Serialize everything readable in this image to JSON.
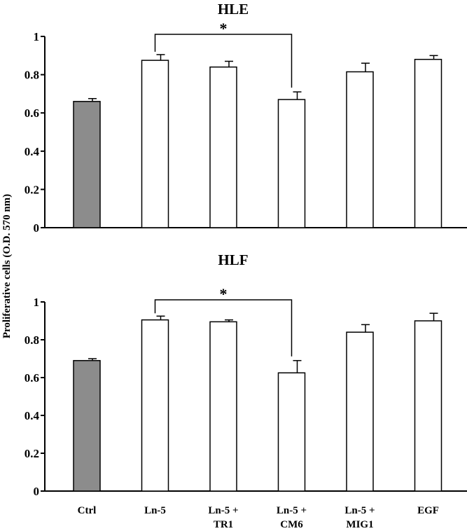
{
  "chart_data": [
    {
      "type": "bar",
      "title": "HLE",
      "ylabel": "Proliferative cells (O.D. 570 nm)",
      "ylim": [
        0,
        1
      ],
      "yticks": [
        "0",
        "0.2",
        "0.4",
        "0.6",
        "0.8",
        "1"
      ],
      "categories": [
        [
          "Ctrl"
        ],
        [
          "Ln-5"
        ],
        [
          "Ln-5 +",
          "TR1"
        ],
        [
          "Ln-5 +",
          "CM6"
        ],
        [
          "Ln-5 +",
          "MIG1"
        ],
        [
          "EGF"
        ]
      ],
      "values": [
        0.66,
        0.875,
        0.84,
        0.67,
        0.815,
        0.88
      ],
      "errors": [
        0.015,
        0.03,
        0.03,
        0.04,
        0.045,
        0.02
      ],
      "bar_colors": [
        "#8c8c8c",
        "#ffffff",
        "#ffffff",
        "#ffffff",
        "#ffffff",
        "#ffffff"
      ],
      "significance": {
        "from": 1,
        "to": 3,
        "label": "*"
      }
    },
    {
      "type": "bar",
      "title": "HLF",
      "ylim": [
        0,
        1
      ],
      "yticks": [
        "0",
        "0.2",
        "0.4",
        "0.6",
        "0.8",
        "1"
      ],
      "categories": [
        [
          "Ctrl"
        ],
        [
          "Ln-5"
        ],
        [
          "Ln-5 +",
          "TR1"
        ],
        [
          "Ln-5 +",
          "CM6"
        ],
        [
          "Ln-5 +",
          "MIG1"
        ],
        [
          "EGF"
        ]
      ],
      "values": [
        0.69,
        0.905,
        0.895,
        0.625,
        0.84,
        0.9
      ],
      "errors": [
        0.01,
        0.02,
        0.01,
        0.065,
        0.04,
        0.04
      ],
      "bar_colors": [
        "#8c8c8c",
        "#ffffff",
        "#ffffff",
        "#ffffff",
        "#ffffff",
        "#ffffff"
      ],
      "significance": {
        "from": 1,
        "to": 3,
        "label": "*"
      }
    }
  ]
}
